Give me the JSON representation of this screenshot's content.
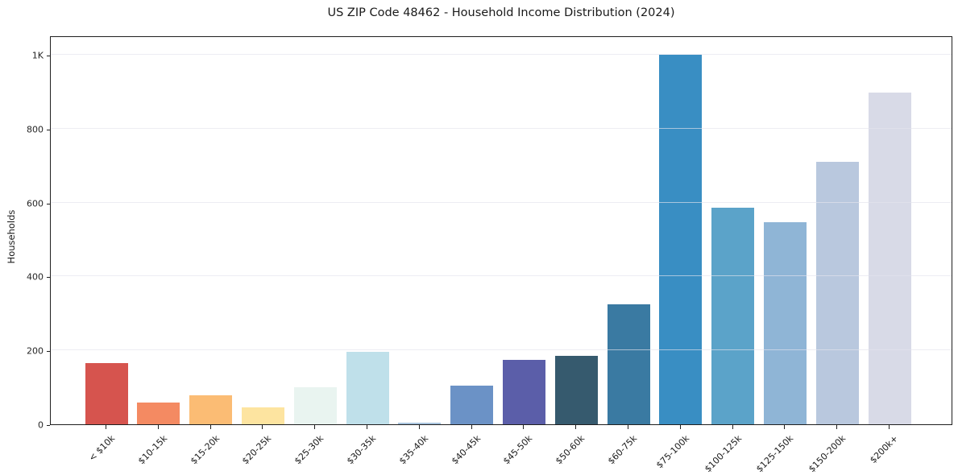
{
  "chart_data": {
    "type": "bar",
    "title": "US ZIP Code 48462 - Household Income Distribution (2024)",
    "xlabel": "",
    "ylabel": "Households",
    "categories": [
      "< $10k",
      "$10-15k",
      "$15-20k",
      "$20-25k",
      "$25-30k",
      "$30-35k",
      "$35-40k",
      "$40-45k",
      "$45-50k",
      "$50-60k",
      "$60-75k",
      "$75-100k",
      "$100-125k",
      "$125-150k",
      "$150-200k",
      "$200k+"
    ],
    "values": [
      165,
      58,
      79,
      46,
      101,
      196,
      4,
      104,
      174,
      185,
      324,
      1000,
      585,
      547,
      710,
      898
    ],
    "bar_colors": [
      "#d6544e",
      "#f48a62",
      "#fbbc74",
      "#fde4a0",
      "#e9f4f0",
      "#bfe0ea",
      "#a9c4de",
      "#6b92c6",
      "#5b5ea9",
      "#365a6e",
      "#3a7aa2",
      "#398ec3",
      "#5ba3c9",
      "#8fb5d6",
      "#b9c8de",
      "#d8dae7"
    ],
    "ylim": [
      0,
      1052
    ],
    "yticks": [
      {
        "value": 0,
        "label": "0"
      },
      {
        "value": 200,
        "label": "200"
      },
      {
        "value": 400,
        "label": "400"
      },
      {
        "value": 600,
        "label": "600"
      },
      {
        "value": 800,
        "label": "800"
      },
      {
        "value": 1000,
        "label": "1K"
      }
    ],
    "grid": "horizontal",
    "legend": "none",
    "background_color": "#ffffff",
    "spine_color": "#1f1f1f",
    "grid_color": "#e4e4ec"
  }
}
